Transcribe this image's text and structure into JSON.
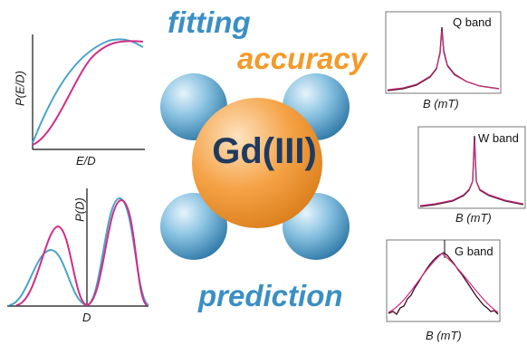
{
  "center_label": "Gd(III)",
  "words": {
    "fitting": "fitting",
    "accuracy": "accuracy",
    "prediction": "prediction"
  },
  "colors": {
    "blue_text": "#3a8fc4",
    "orange_text": "#f39a2a",
    "cyan_curve": "#4aa3c9",
    "magenta_curve": "#d12e86",
    "sphere_blue": "#6fb3d8",
    "sphere_orange": "#f5a347",
    "spectrum_dark": "#5a1a30"
  },
  "panels": {
    "ped": {
      "ylabel": "P(E/D)",
      "xlabel": "E/D"
    },
    "pd": {
      "ylabel": "P(D)",
      "xlabel": "D"
    },
    "q": {
      "band": "Q band",
      "xlabel": "B (mT)"
    },
    "w": {
      "band": "W band",
      "xlabel": "B (mT)"
    },
    "g": {
      "band": "G band",
      "xlabel": "B (mT)"
    }
  }
}
